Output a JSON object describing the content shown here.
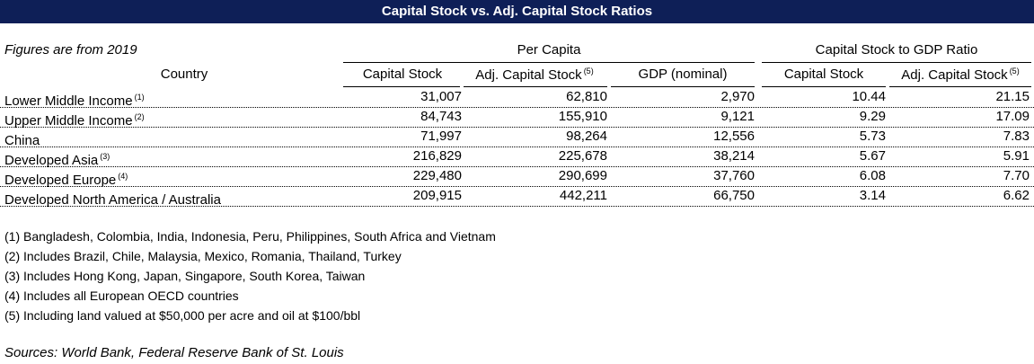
{
  "title": "Capital Stock vs. Adj. Capital Stock Ratios",
  "top_note": "Figures are from 2019",
  "groups": {
    "per_capita": "Per Capita",
    "capital_stock_gdp": "Capital Stock to GDP Ratio"
  },
  "columns": {
    "country": "Country",
    "capital_stock": "Capital Stock",
    "adj_capital_stock": "Adj. Capital Stock",
    "adj_capital_stock_sup": "(5)",
    "gdp_nominal": "GDP (nominal)",
    "ratio_capital_stock": "Capital Stock",
    "ratio_adj_capital_stock": "Adj. Capital Stock",
    "ratio_adj_capital_stock_sup": "(5)"
  },
  "rows": [
    {
      "country": "Lower Middle Income",
      "sup": "(1)",
      "capital_stock": "31,007",
      "adj_capital_stock": "62,810",
      "gdp": "2,970",
      "ratio_cs": "10.44",
      "ratio_adj": "21.15"
    },
    {
      "country": "Upper Middle Income",
      "sup": "(2)",
      "capital_stock": "84,743",
      "adj_capital_stock": "155,910",
      "gdp": "9,121",
      "ratio_cs": "9.29",
      "ratio_adj": "17.09"
    },
    {
      "country": "China",
      "sup": "",
      "capital_stock": "71,997",
      "adj_capital_stock": "98,264",
      "gdp": "12,556",
      "ratio_cs": "5.73",
      "ratio_adj": "7.83"
    },
    {
      "country": "Developed Asia",
      "sup": "(3)",
      "capital_stock": "216,829",
      "adj_capital_stock": "225,678",
      "gdp": "38,214",
      "ratio_cs": "5.67",
      "ratio_adj": "5.91"
    },
    {
      "country": "Developed Europe",
      "sup": "(4)",
      "capital_stock": "229,480",
      "adj_capital_stock": "290,699",
      "gdp": "37,760",
      "ratio_cs": "6.08",
      "ratio_adj": "7.70"
    },
    {
      "country": "Developed North America / Australia",
      "sup": "",
      "capital_stock": "209,915",
      "adj_capital_stock": "442,211",
      "gdp": "66,750",
      "ratio_cs": "3.14",
      "ratio_adj": "6.62"
    }
  ],
  "footnotes": [
    "(1) Bangladesh, Colombia, India, Indonesia, Peru, Philippines, South Africa and Vietnam",
    "(2) Includes Brazil, Chile, Malaysia, Mexico, Romania, Thailand, Turkey",
    "(3) Includes Hong Kong, Japan, Singapore, South Korea, Taiwan",
    "(4) Includes all European OECD countries",
    "(5) Including land valued at $50,000 per acre and oil at $100/bbl"
  ],
  "sources": "Sources: World Bank, Federal Reserve Bank of St. Louis"
}
